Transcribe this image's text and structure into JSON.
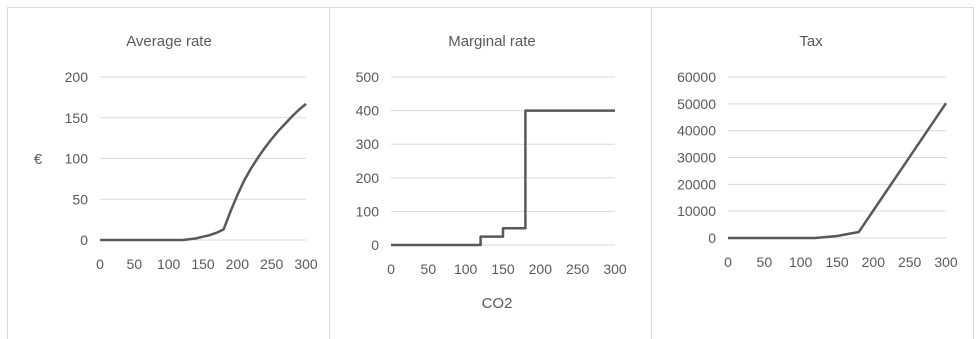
{
  "chart_data": [
    {
      "type": "line",
      "title": "Average rate",
      "xlabel": "",
      "ylabel": "€",
      "xlim": [
        0,
        300
      ],
      "ylim": [
        0,
        200
      ],
      "x_ticks": [
        0,
        50,
        100,
        150,
        200,
        250,
        300
      ],
      "y_ticks": [
        0,
        50,
        100,
        150,
        200
      ],
      "grid": true,
      "line_color": "#595959",
      "series": [
        {
          "x": [
            0,
            120,
            130,
            140,
            150,
            160,
            170,
            180,
            190,
            200,
            210,
            220,
            230,
            240,
            250,
            260,
            270,
            280,
            290,
            300
          ],
          "y": [
            0,
            0,
            1,
            2,
            4,
            6,
            9,
            13,
            35,
            55,
            73,
            88,
            101,
            113,
            124,
            134,
            143,
            152,
            160,
            167
          ]
        }
      ]
    },
    {
      "type": "line",
      "title": "Marginal rate",
      "xlabel": "CO2",
      "ylabel": "",
      "xlim": [
        0,
        300
      ],
      "ylim": [
        0,
        500
      ],
      "x_ticks": [
        0,
        50,
        100,
        150,
        200,
        250,
        300
      ],
      "y_ticks": [
        0,
        100,
        200,
        300,
        400,
        500
      ],
      "grid": true,
      "line_color": "#595959",
      "series": [
        {
          "x": [
            0,
            120,
            120,
            150,
            150,
            180,
            180,
            300
          ],
          "y": [
            0,
            0,
            25,
            25,
            50,
            50,
            400,
            400
          ]
        }
      ]
    },
    {
      "type": "line",
      "title": "Tax",
      "xlabel": "",
      "ylabel": "",
      "xlim": [
        0,
        300
      ],
      "ylim": [
        0,
        60000
      ],
      "x_ticks": [
        0,
        50,
        100,
        150,
        200,
        250,
        300
      ],
      "y_ticks": [
        0,
        10000,
        20000,
        30000,
        40000,
        50000,
        60000
      ],
      "grid": true,
      "line_color": "#595959",
      "series": [
        {
          "x": [
            0,
            120,
            150,
            180,
            300
          ],
          "y": [
            0,
            0,
            750,
            2250,
            50250
          ]
        }
      ]
    }
  ]
}
